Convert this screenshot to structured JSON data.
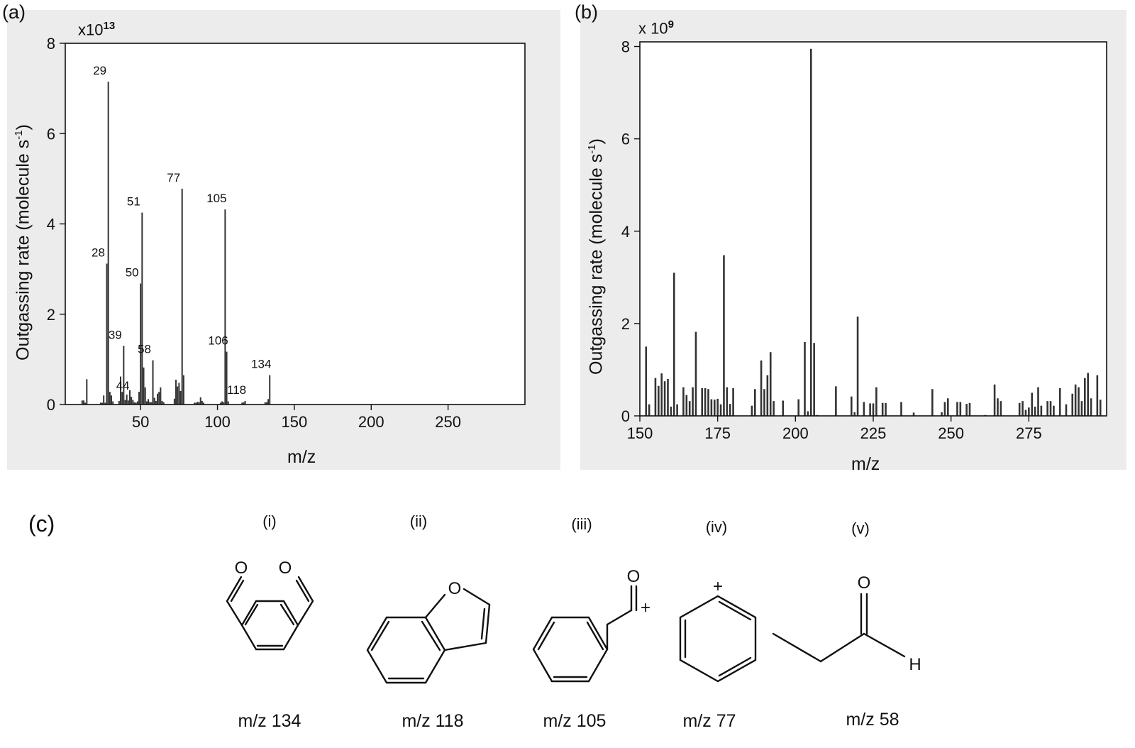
{
  "panel_labels": {
    "a": "(a)",
    "b": "(b)",
    "c": "(c)"
  },
  "chart_data": [
    {
      "type": "bar",
      "multiplier": {
        "base": "x10",
        "exponent": "13"
      },
      "ylabel_main": "Outgassing rate (molecule s",
      "ylabel_sup": "-1",
      "ylabel_close": ")",
      "xlabel": "m/z",
      "xlim": [
        1,
        300
      ],
      "ylim": [
        0,
        8
      ],
      "xticks": [
        50,
        100,
        150,
        200,
        250
      ],
      "yticks": [
        0,
        2,
        4,
        6,
        8
      ],
      "x": [
        12,
        13,
        14,
        15,
        24,
        25,
        26,
        27,
        28,
        29,
        30,
        31,
        32,
        36,
        37,
        38,
        39,
        40,
        41,
        42,
        43,
        44,
        45,
        46,
        47,
        48,
        49,
        50,
        51,
        52,
        53,
        54,
        55,
        56,
        57,
        58,
        59,
        60,
        61,
        62,
        63,
        64,
        65,
        72,
        73,
        74,
        75,
        76,
        77,
        78,
        85,
        86,
        87,
        88,
        89,
        90,
        91,
        102,
        103,
        104,
        105,
        106,
        107,
        116,
        117,
        118,
        131,
        132,
        133,
        134
      ],
      "values": [
        0.09,
        0.09,
        0.04,
        0.56,
        0.04,
        0.04,
        0.2,
        0.04,
        3.12,
        7.15,
        0.28,
        0.2,
        0.07,
        0.08,
        0.62,
        0.28,
        1.3,
        0.1,
        0.22,
        0.09,
        0.32,
        0.17,
        0.1,
        0.05,
        0.04,
        0.07,
        0.28,
        2.68,
        4.25,
        0.82,
        0.38,
        0.07,
        0.12,
        0.06,
        0.05,
        0.98,
        0.15,
        0.08,
        0.24,
        0.28,
        0.38,
        0.08,
        0.05,
        0.13,
        0.55,
        0.4,
        0.48,
        0.3,
        4.78,
        0.65,
        0.04,
        0.04,
        0.06,
        0.05,
        0.16,
        0.08,
        0.04,
        0.04,
        0.07,
        0.05,
        4.32,
        1.17,
        0.07,
        0.04,
        0.05,
        0.08,
        0.05,
        0.05,
        0.12,
        0.65
      ],
      "annotations": [
        {
          "x": 28,
          "label": "28"
        },
        {
          "x": 29,
          "label": "29"
        },
        {
          "x": 39,
          "label": "39"
        },
        {
          "x": 44,
          "label": "44"
        },
        {
          "x": 50,
          "label": "50"
        },
        {
          "x": 51,
          "label": "51"
        },
        {
          "x": 58,
          "label": "58"
        },
        {
          "x": 77,
          "label": "77"
        },
        {
          "x": 105,
          "label": "105"
        },
        {
          "x": 106,
          "label": "106"
        },
        {
          "x": 118,
          "label": "118"
        },
        {
          "x": 134,
          "label": "134"
        }
      ]
    },
    {
      "type": "bar",
      "multiplier": {
        "base": "x 10",
        "exponent": "9"
      },
      "ylabel_main": "Outgassing rate (molecule s",
      "ylabel_sup": "-1",
      "ylabel_close": ")",
      "xlabel": "m/z",
      "xlim": [
        150,
        300
      ],
      "ylim": [
        0,
        8.1
      ],
      "xticks": [
        150,
        175,
        200,
        225,
        250,
        275
      ],
      "yticks": [
        0,
        2,
        4,
        6,
        8
      ],
      "x": [
        152,
        153,
        155,
        156,
        157,
        158,
        159,
        160,
        161,
        162,
        164,
        165,
        166,
        167,
        168,
        170,
        171,
        172,
        173,
        174,
        175,
        176,
        177,
        178,
        179,
        180,
        186,
        187,
        189,
        190,
        191,
        192,
        193,
        196,
        201,
        203,
        204,
        205,
        206,
        207,
        213,
        218,
        219,
        220,
        222,
        224,
        225,
        226,
        228,
        229,
        234,
        238,
        244,
        247,
        248,
        249,
        252,
        253,
        255,
        256,
        261,
        264,
        265,
        266,
        272,
        273,
        274,
        275,
        276,
        277,
        278,
        279,
        281,
        282,
        283,
        285,
        287,
        289,
        290,
        291,
        292,
        293,
        294,
        295,
        297,
        298
      ],
      "values": [
        1.5,
        0.25,
        0.82,
        0.65,
        0.92,
        0.75,
        0.8,
        0.2,
        3.1,
        0.25,
        0.62,
        0.45,
        0.32,
        0.62,
        1.82,
        0.6,
        0.6,
        0.58,
        0.36,
        0.35,
        0.37,
        0.25,
        3.48,
        0.62,
        0.26,
        0.6,
        0.22,
        0.58,
        1.2,
        0.58,
        0.88,
        1.38,
        0.32,
        0.33,
        0.36,
        1.6,
        0.1,
        7.95,
        1.58,
        0.02,
        0.64,
        0.42,
        0.08,
        2.15,
        0.3,
        0.27,
        0.27,
        0.62,
        0.28,
        0.28,
        0.3,
        0.07,
        0.58,
        0.08,
        0.3,
        0.38,
        0.3,
        0.3,
        0.26,
        0.28,
        0.02,
        0.68,
        0.38,
        0.32,
        0.28,
        0.32,
        0.13,
        0.18,
        0.5,
        0.2,
        0.62,
        0.22,
        0.32,
        0.32,
        0.22,
        0.6,
        0.25,
        0.48,
        0.68,
        0.62,
        0.32,
        0.82,
        0.93,
        0.38,
        0.88,
        0.35
      ]
    }
  ],
  "structures": [
    {
      "index": "(i)",
      "caption": "m/z 134"
    },
    {
      "index": "(ii)",
      "caption": "m/z 118"
    },
    {
      "index": "(iii)",
      "caption": "m/z 105"
    },
    {
      "index": "(iv)",
      "caption": "m/z 77"
    },
    {
      "index": "(v)",
      "caption": "m/z 58"
    }
  ],
  "atoms": {
    "oxygen": "O",
    "hydrogen": "H",
    "plus": "+"
  }
}
